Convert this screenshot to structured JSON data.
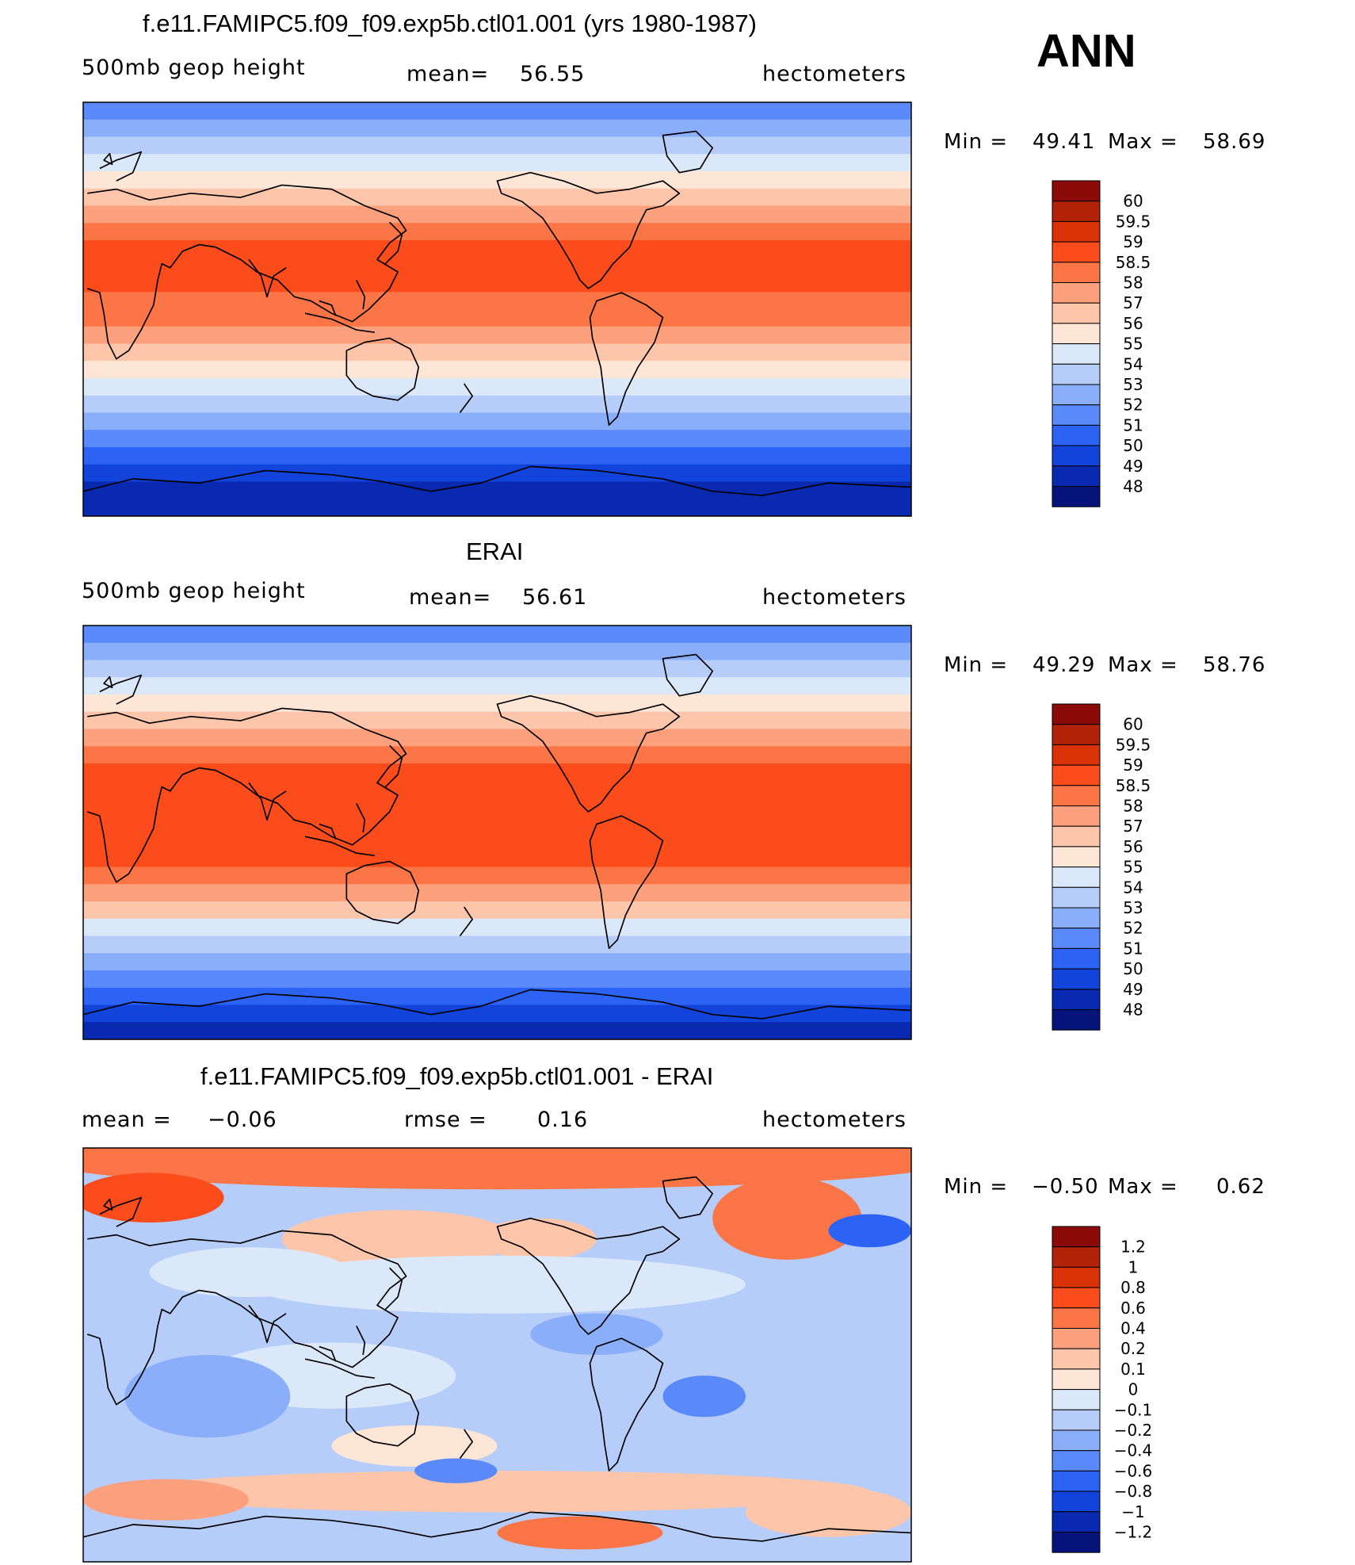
{
  "season": "ANN",
  "chart_data": [
    {
      "type": "heatmap",
      "title": "f.e11.FAMIPC5.f09_f09.exp5b.ctl01.001 (yrs 1980-1987)",
      "left_label": "500mb geop height",
      "mean_text": "mean=",
      "mean_value": "56.55",
      "units": "hectometers",
      "min_text": "Min =",
      "min_value": "49.41",
      "max_text": "Max =",
      "max_value": "58.69",
      "levels": [
        "60",
        "59.5",
        "59",
        "58.5",
        "58",
        "57",
        "56",
        "55",
        "54",
        "53",
        "52",
        "51",
        "50",
        "49",
        "48"
      ],
      "colors": [
        "#8b0a0a",
        "#b32308",
        "#d93207",
        "#fc4c1c",
        "#fc7546",
        "#fda07d",
        "#fdc6ab",
        "#fde6d6",
        "#dbe8fa",
        "#b6cdfa",
        "#8aaefa",
        "#5a8af9",
        "#2c63f5",
        "#1243db",
        "#0829b0",
        "#06137a"
      ]
    },
    {
      "type": "heatmap",
      "title": "ERAI",
      "left_label": "500mb geop height",
      "mean_text": "mean=",
      "mean_value": "56.61",
      "units": "hectometers",
      "min_text": "Min =",
      "min_value": "49.29",
      "max_text": "Max =",
      "max_value": "58.76",
      "levels": [
        "60",
        "59.5",
        "59",
        "58.5",
        "58",
        "57",
        "56",
        "55",
        "54",
        "53",
        "52",
        "51",
        "50",
        "49",
        "48"
      ],
      "colors": [
        "#8b0a0a",
        "#b32308",
        "#d93207",
        "#fc4c1c",
        "#fc7546",
        "#fda07d",
        "#fdc6ab",
        "#fde6d6",
        "#dbe8fa",
        "#b6cdfa",
        "#8aaefa",
        "#5a8af9",
        "#2c63f5",
        "#1243db",
        "#0829b0",
        "#06137a"
      ]
    },
    {
      "type": "heatmap",
      "title": "f.e11.FAMIPC5.f09_f09.exp5b.ctl01.001 - ERAI",
      "left_label": "mean =",
      "mean_text": "rmse =",
      "mean_value": "0.16",
      "left_value": "−0.06",
      "units": "hectometers",
      "min_text": "Min =",
      "min_value": "−0.50",
      "max_text": "Max =",
      "max_value": "0.62",
      "levels": [
        "1.2",
        "1",
        "0.8",
        "0.6",
        "0.4",
        "0.2",
        "0.1",
        "0",
        "−0.1",
        "−0.2",
        "−0.4",
        "−0.6",
        "−0.8",
        "−1",
        "−1.2"
      ],
      "colors": [
        "#8b0a0a",
        "#b32308",
        "#d93207",
        "#fc4c1c",
        "#fc7546",
        "#fda07d",
        "#fdc6ab",
        "#fde6d6",
        "#dbe8fa",
        "#b6cdfa",
        "#8aaefa",
        "#5a8af9",
        "#2c63f5",
        "#1243db",
        "#0829b0",
        "#06137a"
      ]
    }
  ]
}
